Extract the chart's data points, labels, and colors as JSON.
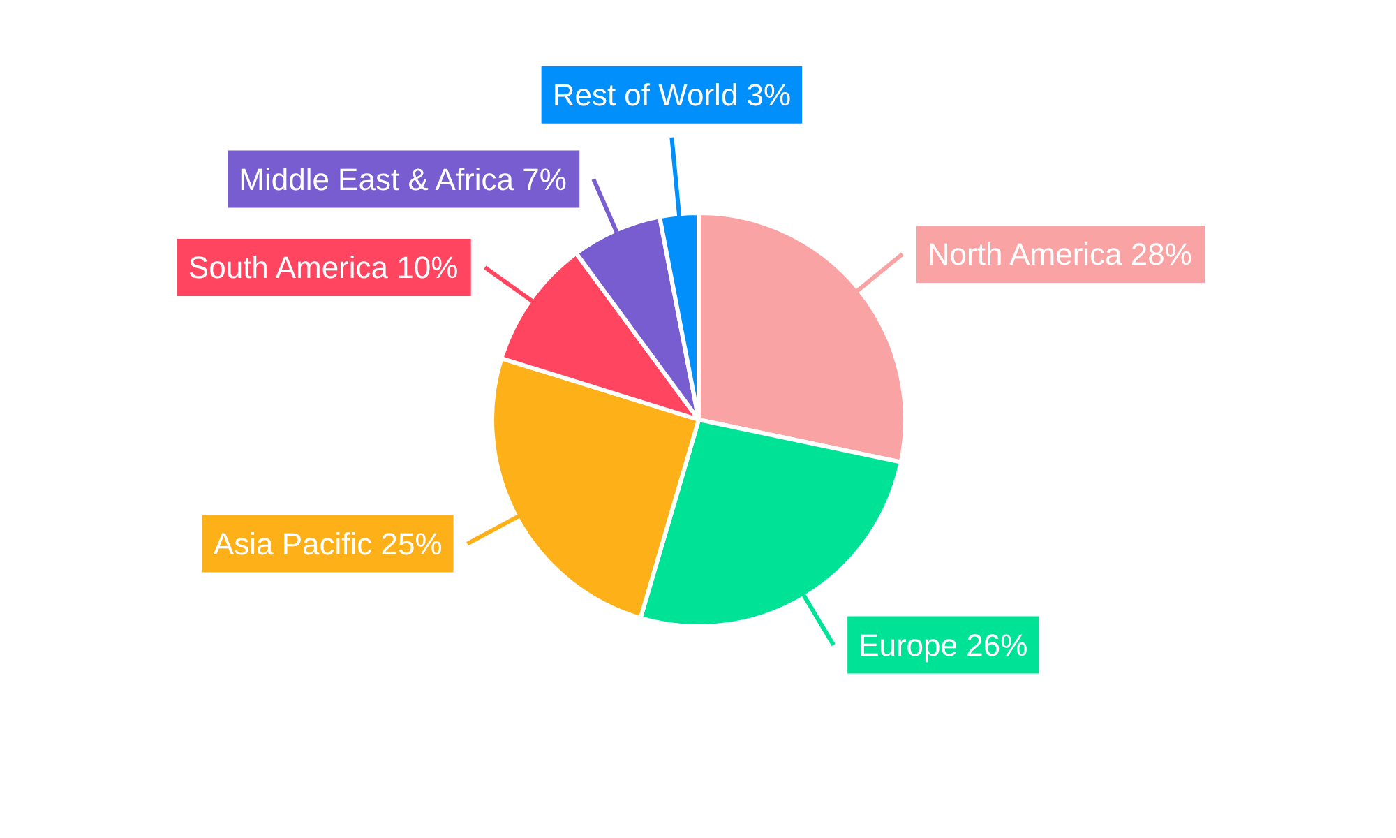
{
  "chart_data": {
    "type": "pie",
    "categories": [
      "North America",
      "Europe",
      "Asia Pacific",
      "South America",
      "Middle East & Africa",
      "Rest of World"
    ],
    "values": [
      28,
      26,
      25,
      10,
      7,
      3
    ],
    "value_labels": [
      "28%",
      "26%",
      "25%",
      "10%",
      "7%",
      "3%"
    ],
    "colors": [
      "#f9a3a4",
      "#00e396",
      "#feb019",
      "#ff4560",
      "#775dd0",
      "#008ffb"
    ]
  }
}
